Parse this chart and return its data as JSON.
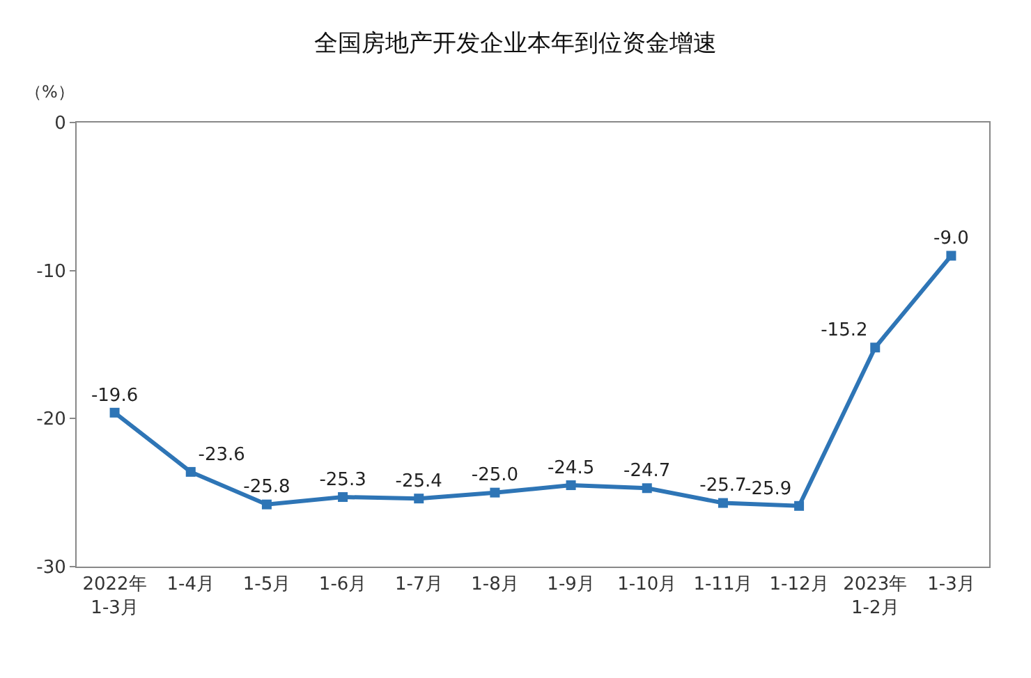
{
  "chart_data": {
    "type": "line",
    "title": "全国房地产开发企业本年到位资金增速",
    "ylabel": "（%）",
    "categories": [
      "2022年\n1-3月",
      "1-4月",
      "1-5月",
      "1-6月",
      "1-7月",
      "1-8月",
      "1-9月",
      "1-10月",
      "1-11月",
      "1-12月",
      "2023年\n1-2月",
      "1-3月"
    ],
    "series": [
      {
        "color": "#2e75b6",
        "values": [
          -19.6,
          -23.6,
          -25.8,
          -25.3,
          -25.4,
          -25.0,
          -24.5,
          -24.7,
          -25.7,
          -25.9,
          -15.2,
          -9.0
        ],
        "value_labels": [
          "-19.6",
          "-23.6",
          "-25.8",
          "-25.3",
          "-25.4",
          "-25.0",
          "-24.5",
          "-24.7",
          "-25.7",
          "-25.9",
          "-15.2",
          "-9.0"
        ]
      }
    ],
    "ylim": [
      -30,
      0
    ],
    "yticks": [
      -30,
      -20,
      -10,
      0
    ],
    "marker": "square",
    "line_style": "solid"
  }
}
